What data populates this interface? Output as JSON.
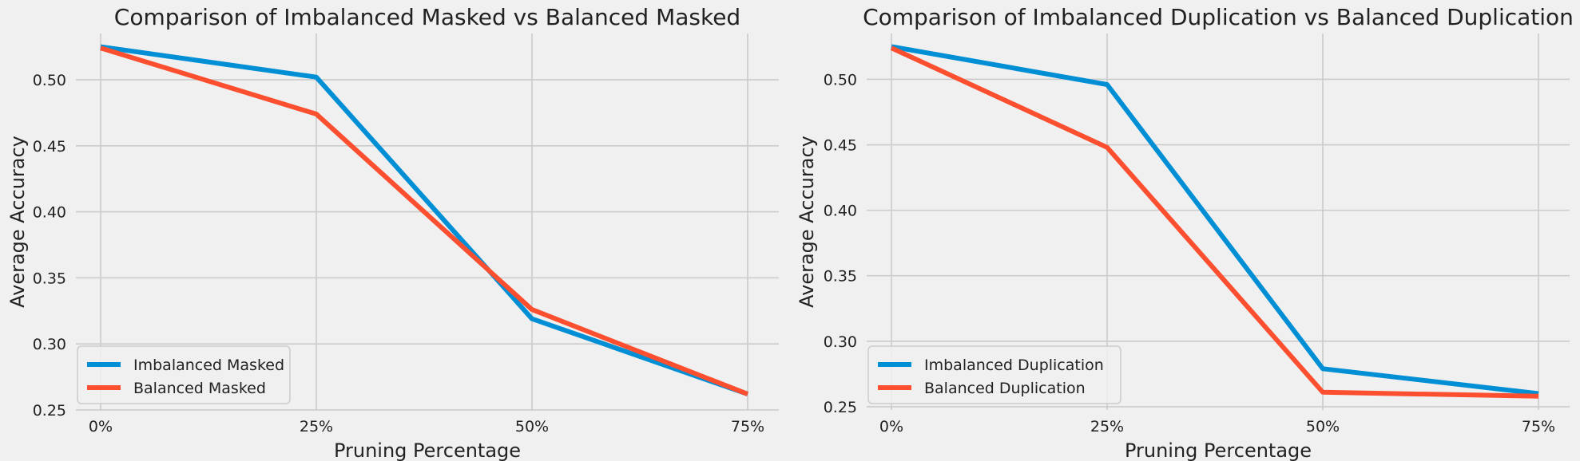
{
  "chart_data": [
    {
      "type": "line",
      "title": "Comparison of Imbalanced Masked vs Balanced Masked",
      "xlabel": "Pruning Percentage",
      "ylabel": "Average Accuracy",
      "categories": [
        "0%",
        "25%",
        "50%",
        "75%"
      ],
      "yticks": [
        "0.25",
        "0.30",
        "0.35",
        "0.40",
        "0.45",
        "0.50"
      ],
      "ylim": [
        0.25,
        0.535
      ],
      "grid": true,
      "legend_position": "lower-left",
      "series": [
        {
          "name": "Imbalanced Masked",
          "color": "#008fd5",
          "values": [
            0.525,
            0.502,
            0.319,
            0.262
          ]
        },
        {
          "name": "Balanced Masked",
          "color": "#fc4f30",
          "values": [
            0.524,
            0.474,
            0.326,
            0.262
          ]
        }
      ]
    },
    {
      "type": "line",
      "title": "Comparison of Imbalanced Duplication vs Balanced Duplication",
      "xlabel": "Pruning Percentage",
      "ylabel": "Average Accuracy",
      "categories": [
        "0%",
        "25%",
        "50%",
        "75%"
      ],
      "yticks": [
        "0.25",
        "0.30",
        "0.35",
        "0.40",
        "0.45",
        "0.50"
      ],
      "ylim": [
        0.2475,
        0.535
      ],
      "grid": true,
      "legend_position": "lower-left",
      "series": [
        {
          "name": "Imbalanced Duplication",
          "color": "#008fd5",
          "values": [
            0.525,
            0.496,
            0.279,
            0.26
          ]
        },
        {
          "name": "Balanced Duplication",
          "color": "#fc4f30",
          "values": [
            0.524,
            0.448,
            0.261,
            0.258
          ]
        }
      ]
    }
  ]
}
